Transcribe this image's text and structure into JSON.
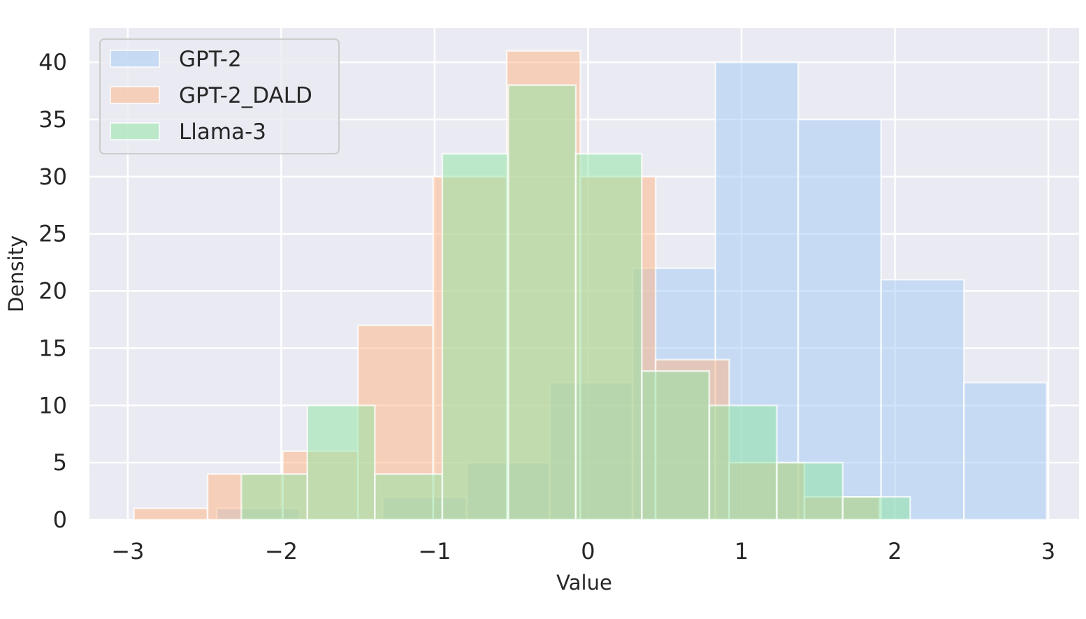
{
  "chart_data": {
    "type": "histogram",
    "xlabel": "Value",
    "ylabel": "Density",
    "xlim": [
      -3.25,
      3.2
    ],
    "ylim": [
      0,
      43
    ],
    "xticks": [
      -3,
      -2,
      -1,
      0,
      1,
      2,
      3
    ],
    "xtick_labels": [
      "−3",
      "−2",
      "−1",
      "0",
      "1",
      "2",
      "3"
    ],
    "yticks": [
      0,
      5,
      10,
      15,
      20,
      25,
      30,
      35,
      40
    ],
    "ytick_labels": [
      "0",
      "5",
      "10",
      "15",
      "20",
      "25",
      "30",
      "35",
      "40"
    ],
    "grid": true,
    "legend_position": "top-left",
    "series": [
      {
        "name": "GPT-2",
        "color": "#a1c9f4",
        "bin_edges": [
          -2.42,
          -1.88,
          -1.34,
          -0.79,
          -0.25,
          0.29,
          0.83,
          1.37,
          1.91,
          2.45,
          2.99
        ],
        "counts": [
          1,
          0,
          2,
          5,
          12,
          22,
          40,
          35,
          21,
          12
        ]
      },
      {
        "name": "GPT-2_DALD",
        "color": "#ffb482",
        "bin_edges": [
          -2.96,
          -2.48,
          -1.99,
          -1.5,
          -1.01,
          -0.53,
          -0.05,
          0.44,
          0.92,
          1.41,
          1.9
        ],
        "counts": [
          1,
          4,
          6,
          17,
          30,
          41,
          30,
          14,
          5,
          2
        ]
      },
      {
        "name": "Llama-3",
        "color": "#8de5a1",
        "bin_edges": [
          -2.26,
          -1.83,
          -1.39,
          -0.95,
          -0.52,
          -0.08,
          0.35,
          0.79,
          1.23,
          1.66,
          2.1
        ],
        "counts": [
          4,
          10,
          4,
          32,
          38,
          32,
          13,
          10,
          5,
          2
        ]
      }
    ]
  }
}
